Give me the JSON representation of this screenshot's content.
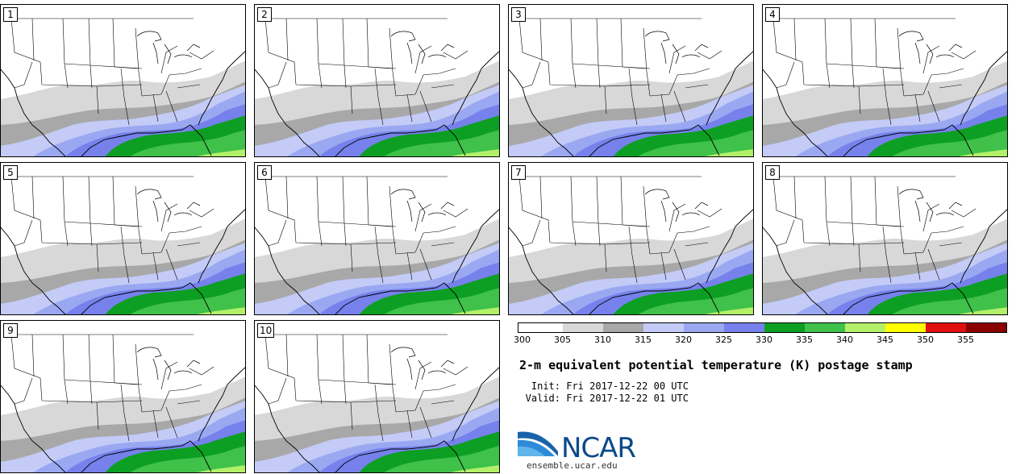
{
  "product": {
    "title": "2-m equivalent potential temperature (K) postage stamp",
    "init_label": "Init:",
    "init_value": "Fri 2017-12-22 00 UTC",
    "valid_label": "Valid:",
    "valid_value": "Fri 2017-12-22 01 UTC"
  },
  "members": [
    {
      "label": "1"
    },
    {
      "label": "2"
    },
    {
      "label": "3"
    },
    {
      "label": "4"
    },
    {
      "label": "5"
    },
    {
      "label": "6"
    },
    {
      "label": "7"
    },
    {
      "label": "8"
    },
    {
      "label": "9"
    },
    {
      "label": "10"
    }
  ],
  "colorbar": {
    "units": "K",
    "ticks": [
      "300",
      "305",
      "310",
      "315",
      "320",
      "325",
      "330",
      "335",
      "340",
      "345",
      "350",
      "355"
    ],
    "colors": [
      "#ffffff",
      "#d8d8d8",
      "#a8a8a8",
      "#c3cbf6",
      "#9aa8f2",
      "#7681ec",
      "#0d9f23",
      "#3fc14a",
      "#b3f06a",
      "#ffff00",
      "#e11010",
      "#8b0000"
    ]
  },
  "branding": {
    "logo_text": "NCAR",
    "url": "ensemble.ucar.edu"
  }
}
